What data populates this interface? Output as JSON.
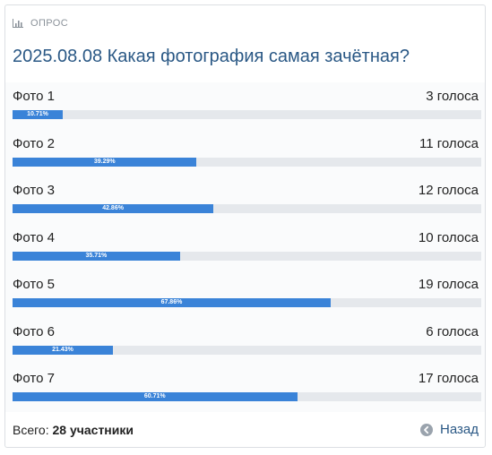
{
  "header": {
    "label": "ОПРОС",
    "icon": "bar-chart-icon"
  },
  "poll": {
    "title": "2025.08.08 Какая фотография самая зачётная?",
    "options": [
      {
        "label": "Фото 1",
        "votes": "3 голоса",
        "percent_label": "10.71%",
        "percent": 10.71
      },
      {
        "label": "Фото 2",
        "votes": "11 голоса",
        "percent_label": "39.29%",
        "percent": 39.29
      },
      {
        "label": "Фото 3",
        "votes": "12 голоса",
        "percent_label": "42.86%",
        "percent": 42.86
      },
      {
        "label": "Фото 4",
        "votes": "10 голоса",
        "percent_label": "35.71%",
        "percent": 35.71
      },
      {
        "label": "Фото 5",
        "votes": "19 голоса",
        "percent_label": "67.86%",
        "percent": 67.86
      },
      {
        "label": "Фото 6",
        "votes": "6 голоса",
        "percent_label": "21.43%",
        "percent": 21.43
      },
      {
        "label": "Фото 7",
        "votes": "17 голоса",
        "percent_label": "60.71%",
        "percent": 60.71
      }
    ]
  },
  "footer": {
    "total_prefix": "Всего:",
    "total_value": "28 участники",
    "back_label": "Назад",
    "back_icon": "arrow-left-circle-icon"
  },
  "colors": {
    "accent": "#3a83d8",
    "title": "#2a5885",
    "track": "#e5e8ec"
  }
}
